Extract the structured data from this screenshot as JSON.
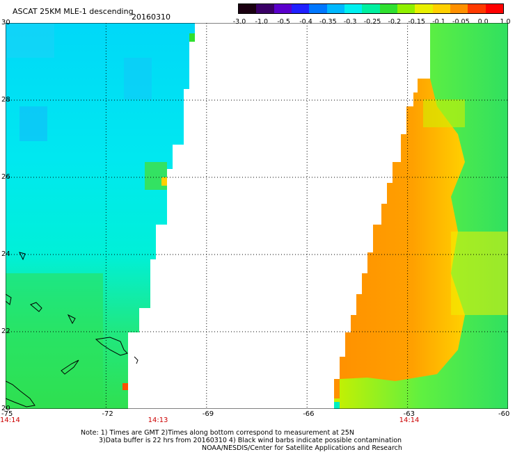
{
  "header": {
    "title": "ASCAT 25KM MLE-1 descending",
    "date": "20160310"
  },
  "colorbar": {
    "labels": [
      "-3.0",
      "-1.0",
      "-0.5",
      "-0.4",
      "-0.35",
      "-0.3",
      "-0.25",
      "-0.2",
      "-0.15",
      "-0.1",
      "-0.05",
      "0.0",
      "1.0"
    ],
    "colors": [
      "#1a0010",
      "#3a0066",
      "#5a00cc",
      "#2020ff",
      "#0077ff",
      "#00b8ff",
      "#00f0f0",
      "#00f0a0",
      "#30e030",
      "#90f000",
      "#e8f000",
      "#ffd000",
      "#ff9000",
      "#ff3a00",
      "#ff0000"
    ]
  },
  "axes": {
    "x_ticks": [
      "-75",
      "-72",
      "-69",
      "-66",
      "-63",
      "-60"
    ],
    "y_ticks": [
      "30",
      "28",
      "26",
      "24",
      "22",
      "20"
    ],
    "x_range": [
      -75,
      -60
    ],
    "y_range": [
      20,
      30
    ]
  },
  "times": [
    {
      "label": "14:14",
      "lon": -75
    },
    {
      "label": "14:13",
      "lon": -70.5
    },
    {
      "label": "14:14",
      "lon": -63
    }
  ],
  "notes": [
    "Note: 1) Times are GMT 2)Times along bottom correspond to measurement at 25N",
    "3)Data buffer is 22 hrs from 20160310 4) Black wind barbs indicate possible contamination",
    "NOAA/NESDIS/Center for Satellite Applications and Research"
  ]
}
